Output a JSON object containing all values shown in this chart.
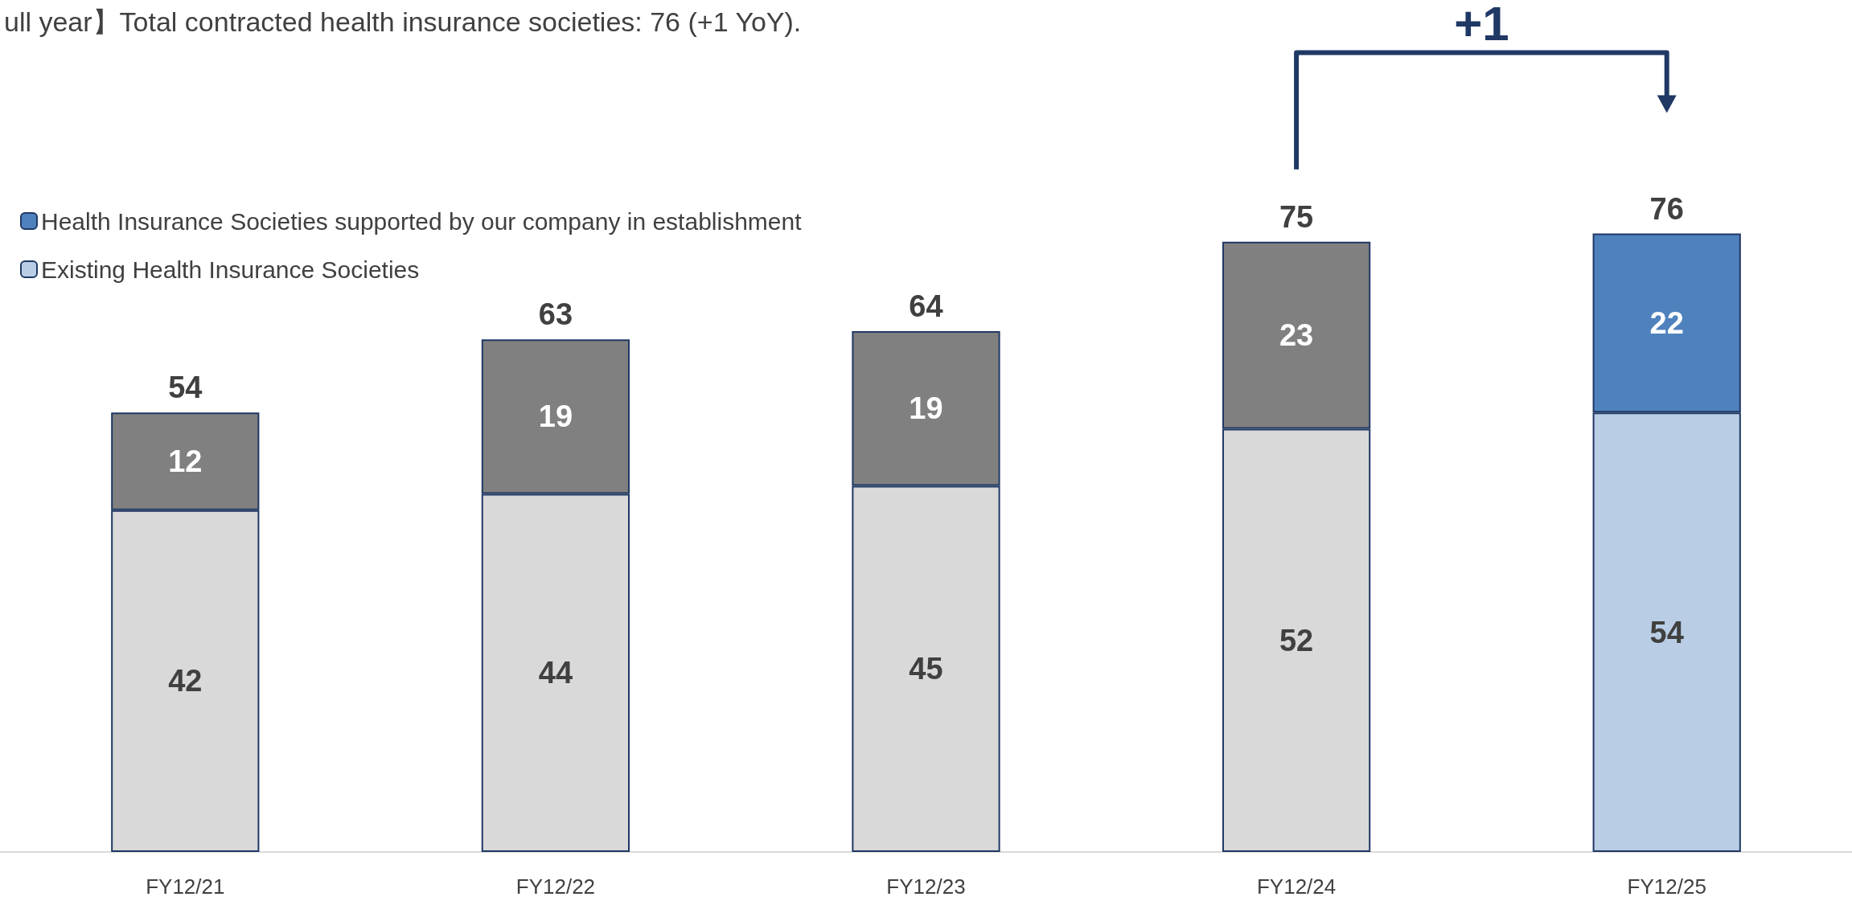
{
  "chart_data": {
    "type": "bar",
    "title": "ull year】Total contracted health insurance societies: 76 (+1 YoY).",
    "categories": [
      "FY12/21",
      "FY12/22",
      "FY12/23",
      "FY12/24",
      "FY12/25"
    ],
    "stacked": true,
    "series": [
      {
        "name": "Existing Health Insurance Societies",
        "color": "#b9cde5",
        "colors": [
          "#d9d9d9",
          "#d9d9d9",
          "#d9d9d9",
          "#d9d9d9",
          "#b9cde5"
        ],
        "values": [
          42,
          44,
          45,
          52,
          54
        ]
      },
      {
        "name": "Health Insurance Societies supported by our company in establishment",
        "color": "#4f81bd",
        "colors": [
          "#808080",
          "#808080",
          "#808080",
          "#808080",
          "#4f81bd"
        ],
        "values": [
          12,
          19,
          19,
          23,
          22
        ]
      }
    ],
    "totals": [
      "54",
      "63",
      "64",
      "75",
      "76"
    ],
    "data_labels": true,
    "legend": "top left",
    "grid": false,
    "annotations": [
      "+1"
    ]
  }
}
